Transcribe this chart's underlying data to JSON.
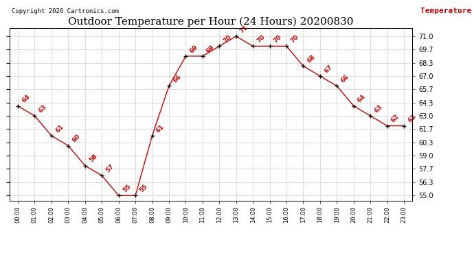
{
  "title": "Outdoor Temperature per Hour (24 Hours) 20200830",
  "copyright": "Copyright 2020 Cartronics.com",
  "legend_label": "Temperature (°F)",
  "hours": [
    0,
    1,
    2,
    3,
    4,
    5,
    6,
    7,
    8,
    9,
    10,
    11,
    12,
    13,
    14,
    15,
    16,
    17,
    18,
    19,
    20,
    21,
    22,
    23
  ],
  "temps": [
    64,
    63,
    61,
    60,
    58,
    57,
    55,
    55,
    61,
    66,
    69,
    69,
    70,
    71,
    70,
    70,
    70,
    68,
    67,
    66,
    64,
    63,
    62,
    62
  ],
  "line_color": "#cc0000",
  "marker_color": "#000000",
  "label_color": "#cc0000",
  "background_color": "#ffffff",
  "grid_color": "#aaaaaa",
  "yticks": [
    55.0,
    56.3,
    57.7,
    59.0,
    60.3,
    61.7,
    63.0,
    64.3,
    65.7,
    67.0,
    68.3,
    69.7,
    71.0
  ],
  "ylim": [
    54.5,
    71.8
  ],
  "xlim": [
    -0.5,
    23.5
  ],
  "title_fontsize": 11,
  "copyright_fontsize": 6.5,
  "legend_fontsize": 8,
  "label_fontsize": 6.5,
  "tick_fontsize": 7,
  "xtick_fontsize": 6
}
